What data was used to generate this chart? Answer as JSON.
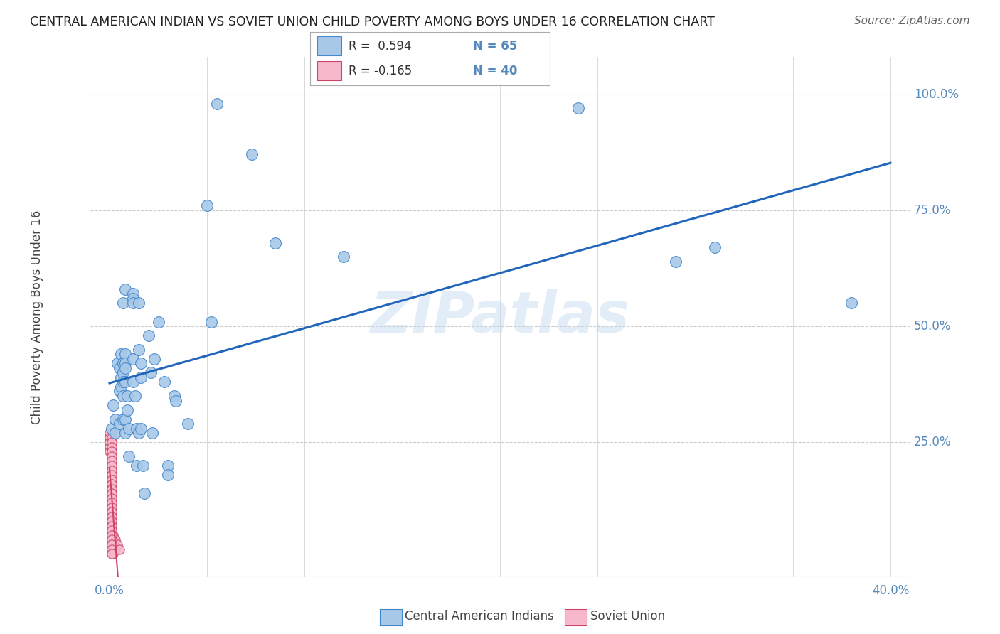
{
  "title": "CENTRAL AMERICAN INDIAN VS SOVIET UNION CHILD POVERTY AMONG BOYS UNDER 16 CORRELATION CHART",
  "source": "Source: ZipAtlas.com",
  "ylabel": "Child Poverty Among Boys Under 16",
  "watermark": "ZIPatlas",
  "blue_color": "#A8C8E8",
  "blue_edge": "#4488CC",
  "pink_color": "#F8B8CC",
  "pink_edge": "#CC4466",
  "line_color": "#2266BB",
  "pink_line_color": "#CC4466",
  "grid_color": "#CCCCCC",
  "title_color": "#222222",
  "axis_color": "#5588BB",
  "label_color": "#444444",
  "background": "#FFFFFF",
  "xmin": 0.0,
  "xmax": 0.4,
  "ymin": 0.0,
  "ymax": 1.05,
  "xtick_vals": [
    0.0,
    0.05,
    0.1,
    0.15,
    0.2,
    0.25,
    0.3,
    0.35,
    0.4
  ],
  "xtick_labels": [
    "0.0%",
    "",
    "",
    "",
    "",
    "",
    "",
    "",
    "40.0%"
  ],
  "ytick_vals": [
    0.25,
    0.5,
    0.75,
    1.0
  ],
  "ytick_labels": [
    "25.0%",
    "50.0%",
    "75.0%",
    "100.0%"
  ],
  "blue_x": [
    0.001,
    0.002,
    0.003,
    0.003,
    0.004,
    0.005,
    0.005,
    0.005,
    0.006,
    0.006,
    0.006,
    0.007,
    0.007,
    0.007,
    0.007,
    0.007,
    0.007,
    0.008,
    0.008,
    0.008,
    0.008,
    0.008,
    0.008,
    0.008,
    0.009,
    0.009,
    0.01,
    0.01,
    0.012,
    0.012,
    0.012,
    0.012,
    0.012,
    0.013,
    0.014,
    0.014,
    0.015,
    0.015,
    0.015,
    0.016,
    0.016,
    0.016,
    0.017,
    0.018,
    0.02,
    0.021,
    0.022,
    0.023,
    0.025,
    0.028,
    0.03,
    0.03,
    0.033,
    0.034,
    0.04,
    0.05,
    0.052,
    0.055,
    0.073,
    0.085,
    0.12,
    0.24,
    0.29,
    0.31,
    0.38
  ],
  "blue_y": [
    0.28,
    0.33,
    0.3,
    0.27,
    0.42,
    0.41,
    0.36,
    0.29,
    0.44,
    0.39,
    0.37,
    0.55,
    0.42,
    0.4,
    0.38,
    0.35,
    0.3,
    0.58,
    0.44,
    0.42,
    0.41,
    0.38,
    0.3,
    0.27,
    0.35,
    0.32,
    0.28,
    0.22,
    0.57,
    0.56,
    0.55,
    0.43,
    0.38,
    0.35,
    0.28,
    0.2,
    0.55,
    0.45,
    0.27,
    0.42,
    0.39,
    0.28,
    0.2,
    0.14,
    0.48,
    0.4,
    0.27,
    0.43,
    0.51,
    0.38,
    0.2,
    0.18,
    0.35,
    0.34,
    0.29,
    0.76,
    0.51,
    0.98,
    0.87,
    0.68,
    0.65,
    0.97,
    0.64,
    0.67,
    0.55
  ],
  "pink_x": [
    0.0,
    0.0,
    0.0,
    0.0,
    0.0,
    0.001,
    0.001,
    0.001,
    0.001,
    0.001,
    0.001,
    0.001,
    0.001,
    0.001,
    0.001,
    0.001,
    0.001,
    0.001,
    0.001,
    0.001,
    0.001,
    0.001,
    0.001,
    0.001,
    0.001,
    0.001,
    0.002,
    0.002,
    0.002,
    0.002,
    0.002,
    0.003,
    0.003,
    0.004,
    0.005,
    0.001,
    0.001,
    0.001,
    0.001,
    0.001
  ],
  "pink_y": [
    0.27,
    0.26,
    0.25,
    0.24,
    0.23,
    0.26,
    0.25,
    0.24,
    0.23,
    0.22,
    0.21,
    0.2,
    0.19,
    0.18,
    0.17,
    0.16,
    0.15,
    0.14,
    0.13,
    0.12,
    0.11,
    0.1,
    0.09,
    0.08,
    0.07,
    0.06,
    0.05,
    0.04,
    0.03,
    0.02,
    0.01,
    0.04,
    0.02,
    0.03,
    0.02,
    0.05,
    0.04,
    0.03,
    0.02,
    0.01
  ]
}
